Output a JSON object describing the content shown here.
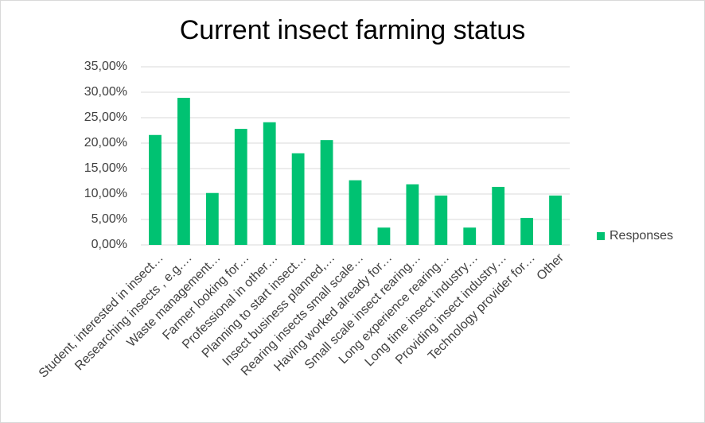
{
  "chart_data": {
    "type": "bar",
    "title": "Current insect farming status",
    "categories": [
      "Student, interested in insect…",
      "Researching insects , e.g.…",
      "Waste management…",
      "Farmer looking for…",
      "Professional in other…",
      "Planning to start insect…",
      "Insect business planned,…",
      "Rearing insects small scale…",
      "Having worked already for…",
      "Small scale insect rearing…",
      "Long experience rearing…",
      "Long time insect industry…",
      "Providing insect industry…",
      "Technology provider for…",
      "Other"
    ],
    "series": [
      {
        "name": "Responses",
        "color": "#00c272",
        "values": [
          21.6,
          28.9,
          10.2,
          22.8,
          24.1,
          18.0,
          20.6,
          12.7,
          3.4,
          11.9,
          9.7,
          3.4,
          11.4,
          5.3,
          9.7
        ]
      }
    ],
    "ylim": [
      0,
      35
    ],
    "yticks": [
      {
        "value": 0,
        "label": "0,00%"
      },
      {
        "value": 5,
        "label": "5,00%"
      },
      {
        "value": 10,
        "label": "10,00%"
      },
      {
        "value": 15,
        "label": "15,00%"
      },
      {
        "value": 20,
        "label": "20,00%"
      },
      {
        "value": 25,
        "label": "25,00%"
      },
      {
        "value": 30,
        "label": "30,00%"
      },
      {
        "value": 35,
        "label": "35,00%"
      }
    ],
    "grid": true,
    "legend": "right"
  }
}
